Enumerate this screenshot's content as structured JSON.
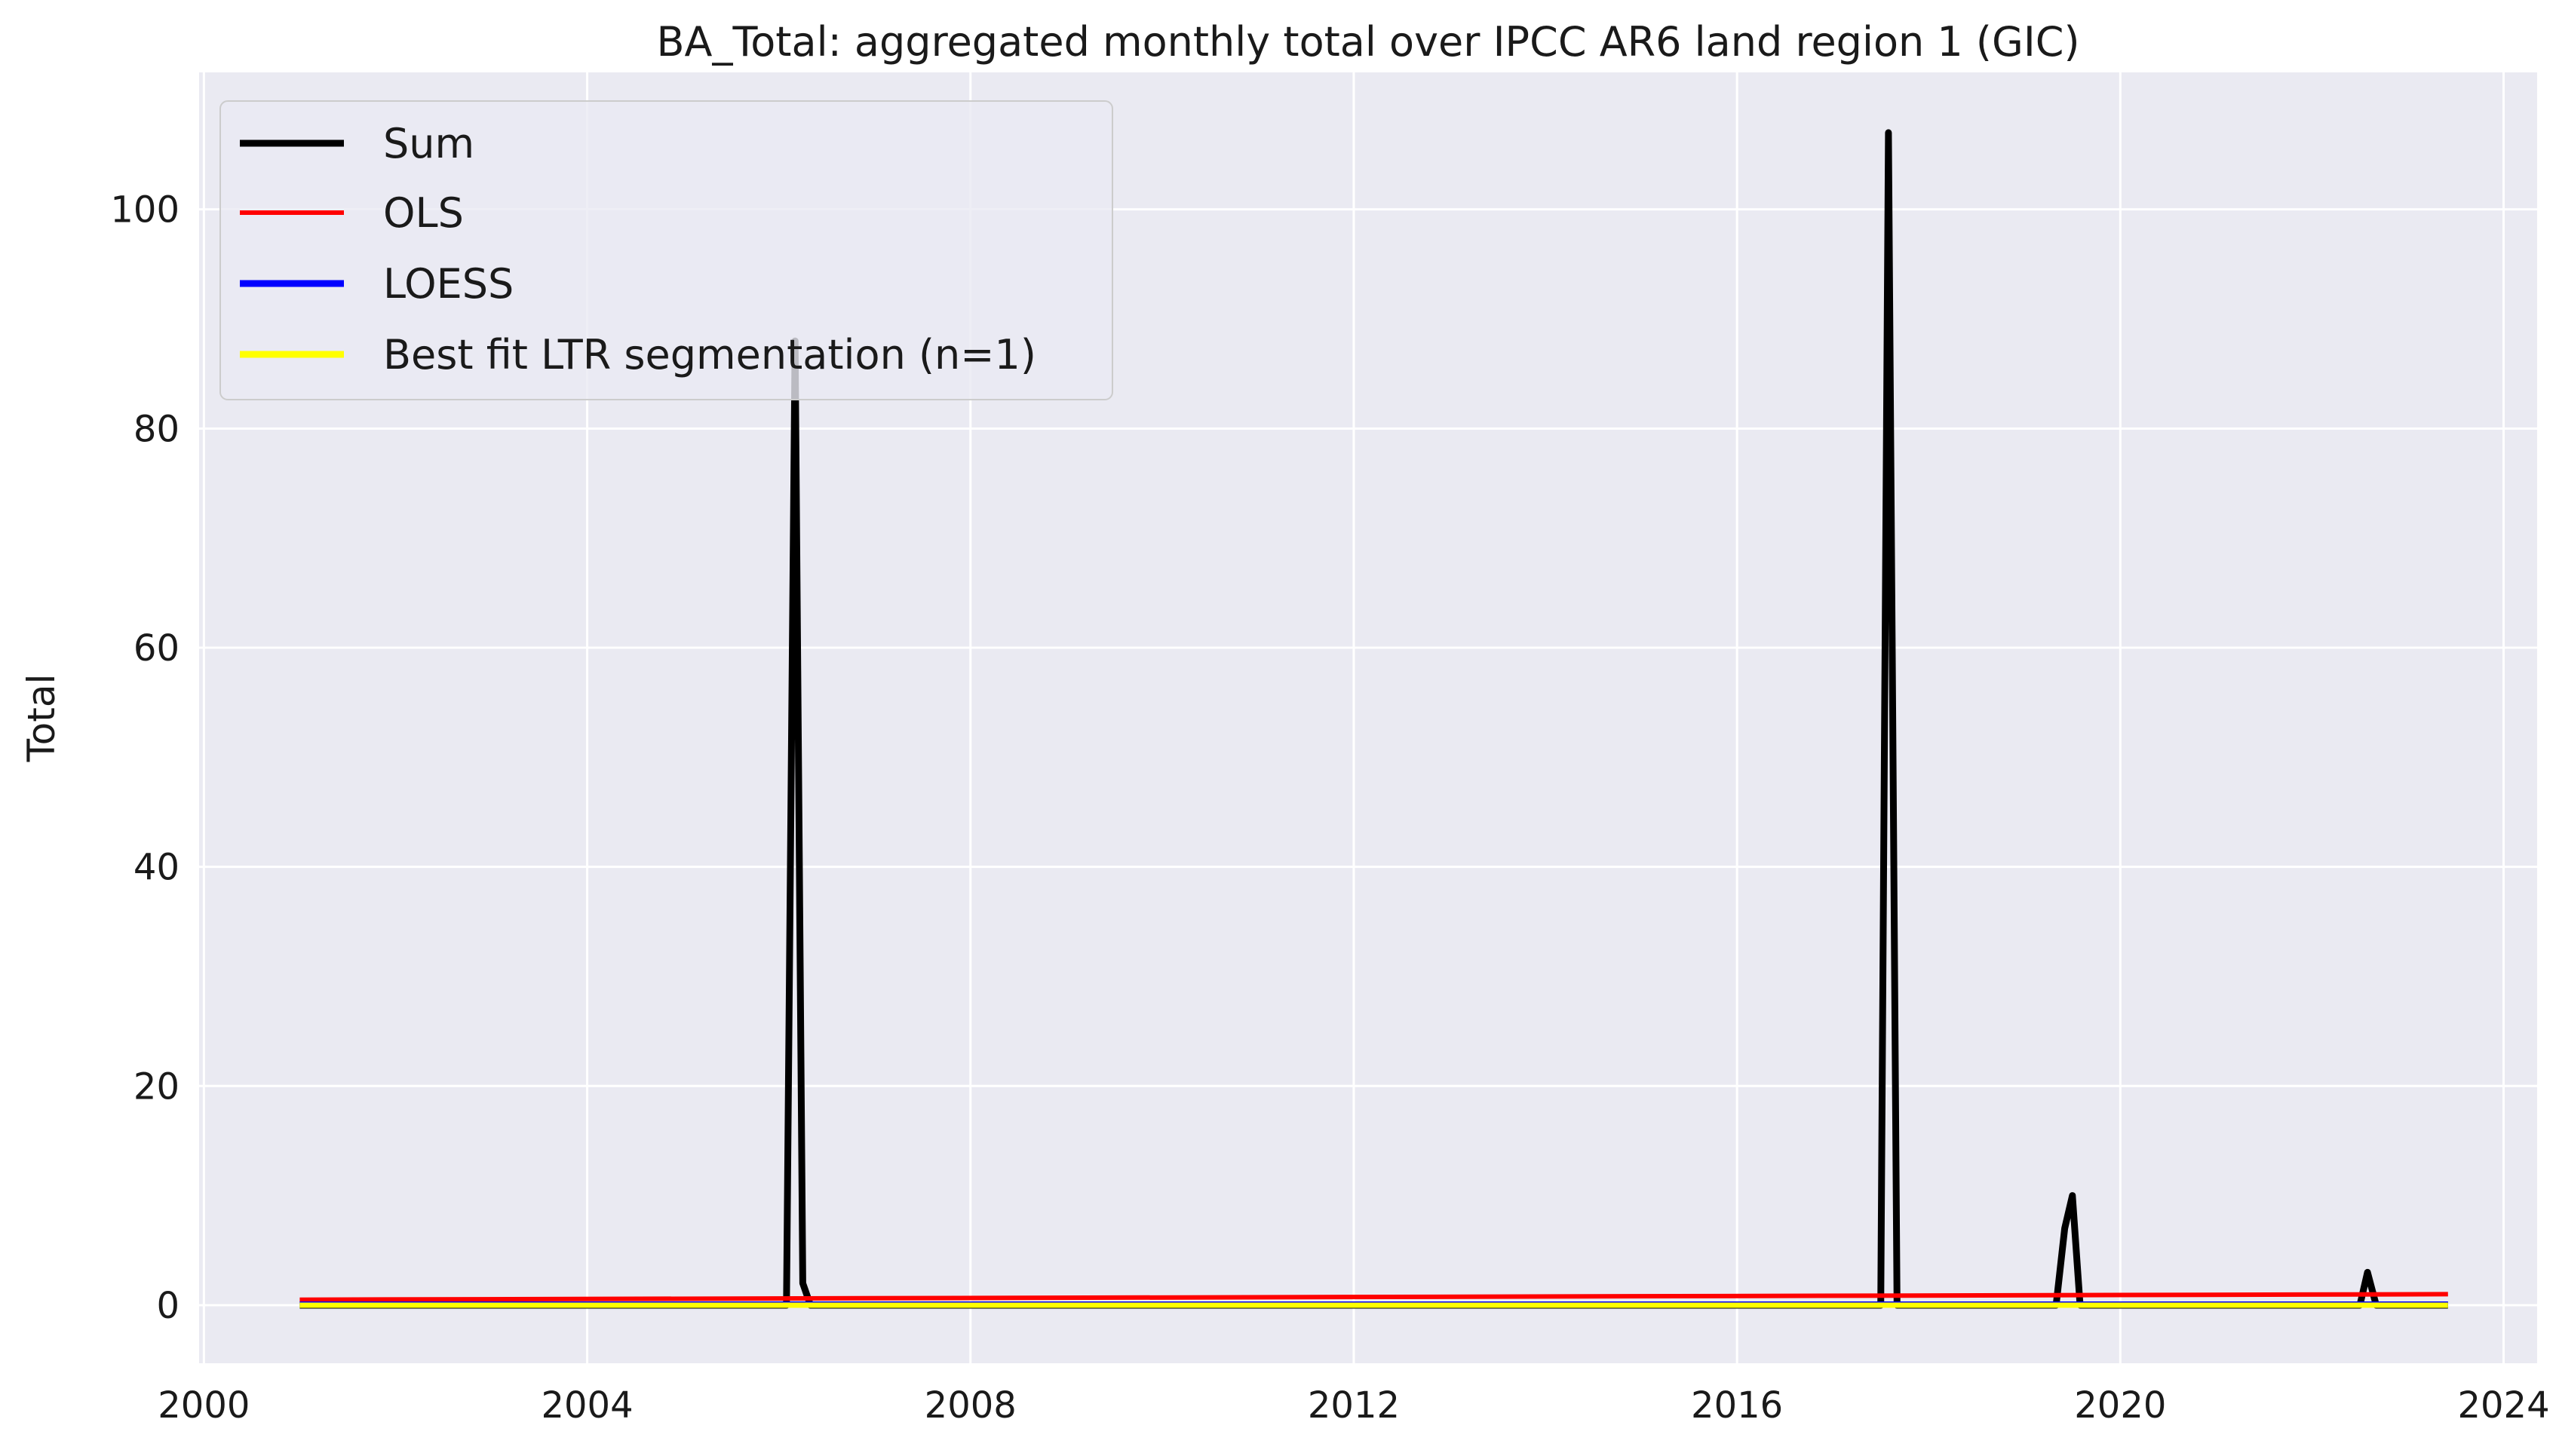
{
  "chart_data": {
    "type": "line",
    "title": "BA_Total: aggregated monthly total over IPCC AR6 land region 1 (GIC)",
    "xlabel": "",
    "ylabel": "Total",
    "xlim": [
      1999.95,
      2024.35
    ],
    "ylim": [
      -5.3,
      112.5
    ],
    "x_ticks": [
      2000,
      2004,
      2008,
      2012,
      2016,
      2020,
      2024
    ],
    "x_tick_labels": [
      "2000",
      "2004",
      "2008",
      "2012",
      "2016",
      "2020",
      "2024"
    ],
    "y_ticks": [
      0,
      20,
      40,
      60,
      80,
      100
    ],
    "y_tick_labels": [
      "0",
      "20",
      "40",
      "60",
      "80",
      "100"
    ],
    "grid": true,
    "legend_position": "top-left",
    "series": [
      {
        "name": "Sum",
        "color": "#000000",
        "points": [
          [
            2001.0,
            0
          ],
          [
            2006.08,
            0
          ],
          [
            2006.17,
            88
          ],
          [
            2006.25,
            2
          ],
          [
            2006.33,
            0
          ],
          [
            2017.5,
            0
          ],
          [
            2017.58,
            107
          ],
          [
            2017.67,
            0
          ],
          [
            2019.33,
            0
          ],
          [
            2019.42,
            7
          ],
          [
            2019.5,
            10
          ],
          [
            2019.58,
            0
          ],
          [
            2022.5,
            0
          ],
          [
            2022.58,
            3
          ],
          [
            2022.67,
            0
          ],
          [
            2023.42,
            0
          ]
        ]
      },
      {
        "name": "OLS",
        "color": "#ff0000",
        "points": [
          [
            2001.0,
            0.5
          ],
          [
            2023.42,
            1.0
          ]
        ]
      },
      {
        "name": "LOESS",
        "color": "#0000ff",
        "points": [
          [
            2001.0,
            0.1
          ],
          [
            2023.42,
            0.1
          ]
        ]
      },
      {
        "name": "Best fit LTR segmentation (n=1)",
        "color": "#ffff00",
        "points": [
          [
            2001.0,
            0.0
          ],
          [
            2023.42,
            0.0
          ]
        ]
      }
    ]
  }
}
